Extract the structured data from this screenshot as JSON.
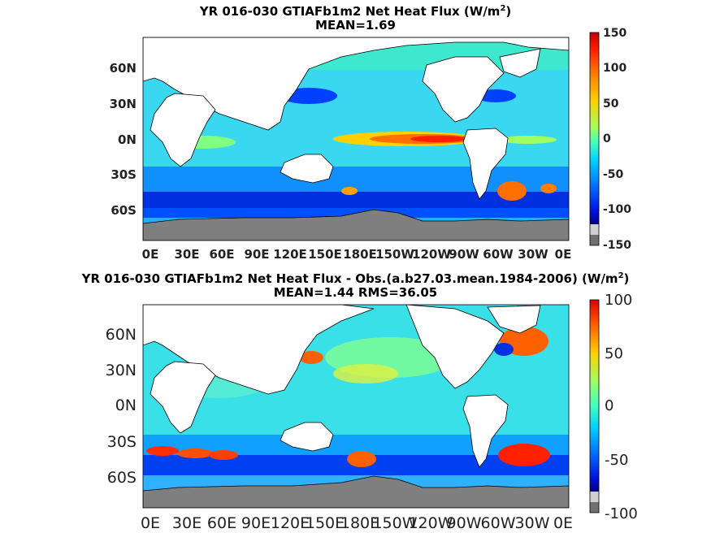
{
  "panels": [
    {
      "title_line1": "YR 016-030 GTIAFb1m2  Net Heat Flux (W/m",
      "title_sup": "2",
      "title_line1_end": ")",
      "title_line2": "MEAN=1.69",
      "yticks": [
        "60N",
        "30N",
        "0N",
        "30S",
        "60S"
      ],
      "xticks": [
        "0E",
        "30E",
        "60E",
        "90E",
        "120E",
        "150E",
        "180E",
        "150W",
        "120W",
        "90W",
        "60W",
        "30W",
        "0E"
      ],
      "colorbar_ticks": [
        "150",
        "100",
        "50",
        "0",
        "-50",
        "-100",
        "-150"
      ]
    },
    {
      "title_line1": "YR 016-030 GTIAFb1m2  Net Heat Flux - Obs.(a.b27.03.mean.1984-2006) (W/m",
      "title_sup": "2",
      "title_line1_end": ")",
      "title_line2": "MEAN=1.44 RMS=36.05",
      "yticks": [
        "60N",
        "30N",
        "0N",
        "30S",
        "60S"
      ],
      "xticks": [
        "0E",
        "30E",
        "60E",
        "90E",
        "120E",
        "150E",
        "180E",
        "150W",
        "120W",
        "90W",
        "60W",
        "30W",
        "0E"
      ],
      "colorbar_ticks": [
        "100",
        "50",
        "0",
        "-50",
        "-100"
      ]
    }
  ],
  "colors": {
    "land": "#ffffff",
    "antarctica": "#7f7f7f",
    "ocean_base": "#33ddee",
    "colormap": [
      "#00008f",
      "#0000ff",
      "#007fff",
      "#00ffff",
      "#7fff7f",
      "#ffff00",
      "#ff7f00",
      "#ff0000",
      "#7f0000"
    ]
  }
}
